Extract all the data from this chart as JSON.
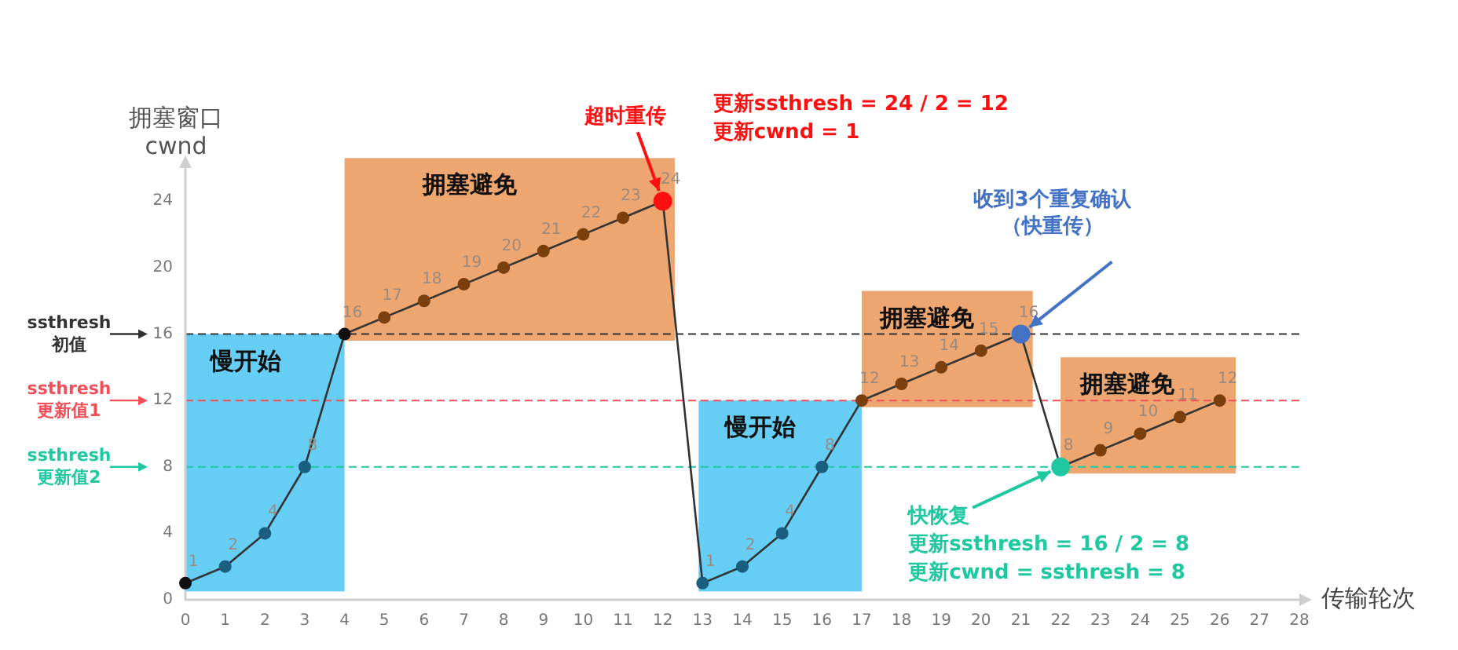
{
  "chart_data": {
    "type": "line",
    "xlabel": "传输轮次",
    "ylabel": "拥塞窗口\ncwnd",
    "x": [
      0,
      1,
      2,
      3,
      4,
      5,
      6,
      7,
      8,
      9,
      10,
      11,
      12,
      13,
      14,
      15,
      16,
      17,
      18,
      19,
      20,
      21,
      22,
      23,
      24,
      25,
      26
    ],
    "series": [
      {
        "color": "#333333",
        "values": [
          1,
          2,
          4,
          8,
          16,
          17,
          18,
          19,
          20,
          21,
          22,
          23,
          24,
          1,
          2,
          4,
          8,
          12,
          13,
          14,
          15,
          16,
          8,
          9,
          10,
          11,
          12
        ],
        "colors": [
          "#111111",
          "#1a5e80",
          "#1a5e80",
          "#1a5e80",
          "#111111",
          "#7b3f0e",
          "#7b3f0e",
          "#7b3f0e",
          "#7b3f0e",
          "#7b3f0e",
          "#7b3f0e",
          "#7b3f0e",
          "#ff1010",
          "#1a5e80",
          "#1a5e80",
          "#1a5e80",
          "#1a5e80",
          "#7b3f0e",
          "#7b3f0e",
          "#7b3f0e",
          "#7b3f0e",
          "#4472c4",
          "#1fc8a0",
          "#7b3f0e",
          "#7b3f0e",
          "#7b3f0e",
          "#7b3f0e"
        ]
      }
    ],
    "data_labels": true,
    "marker": "circle",
    "xlim": [
      0,
      28
    ],
    "ylim": [
      0,
      26
    ],
    "xticks": [
      0,
      1,
      2,
      3,
      4,
      5,
      6,
      7,
      8,
      9,
      10,
      11,
      12,
      13,
      14,
      15,
      16,
      17,
      18,
      19,
      20,
      21,
      22,
      23,
      24,
      25,
      26,
      27,
      28
    ],
    "yticks": [
      0,
      4,
      8,
      12,
      16,
      20,
      24
    ],
    "grid": false,
    "bands": [
      {
        "axis": "x",
        "from": 0,
        "to": 4,
        "label": "慢开始",
        "color": "#66cdf5"
      },
      {
        "axis": "x",
        "from": 4,
        "to": 12.3,
        "label": "拥塞避免",
        "color": "#eda670"
      },
      {
        "axis": "x",
        "from": 12.9,
        "to": 17,
        "label": "慢开始",
        "color": "#66cdf5"
      },
      {
        "axis": "x",
        "from": 17,
        "to": 21.3,
        "label": "拥塞避免",
        "color": "#eda670"
      },
      {
        "axis": "x",
        "from": 22,
        "to": 26.4,
        "label": "拥塞避免",
        "color": "#eda670"
      }
    ],
    "ref_lines": [
      {
        "axis": "y",
        "value": 16,
        "label": "ssthresh 初值",
        "color": "#333333",
        "line_style": "dashed"
      },
      {
        "axis": "y",
        "value": 12,
        "label": "ssthresh 更新值1",
        "color": "#f0505a",
        "line_style": "dashed"
      },
      {
        "axis": "y",
        "value": 8,
        "label": "ssthresh 更新值2",
        "color": "#1fc8a0",
        "line_style": "dashed"
      }
    ],
    "annotations": [
      {
        "text": "超时重传",
        "x": 12,
        "y": 24
      },
      "更新ssthresh = 24 / 2 = 12",
      "更新cwnd = 1",
      {
        "text": "收到3个重复确认（快重传）",
        "x": 21,
        "y": 16
      },
      {
        "text": "快恢复",
        "x": 22,
        "y": 8
      },
      "更新ssthresh = 16 / 2 = 8",
      "更新cwnd = ssthresh = 8"
    ]
  }
}
